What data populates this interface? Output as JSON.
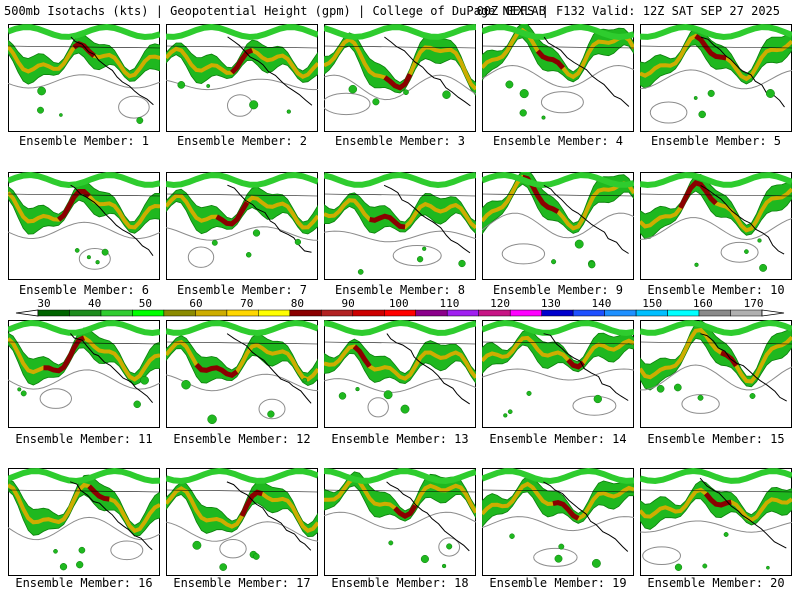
{
  "header": {
    "left": "500mb Isotachs (kts) | Geopotential Height (gpm) | College of DuPage NEXLAB",
    "right": "00Z GEFS | F132 Valid: 12Z SAT SEP 27 2025"
  },
  "legend": {
    "ticks": [
      "30",
      "40",
      "50",
      "60",
      "70",
      "80",
      "90",
      "100",
      "110",
      "120",
      "130",
      "140",
      "150",
      "160",
      "170"
    ],
    "colors": [
      "#006400",
      "#1e8c1e",
      "#32cd32",
      "#00ff00",
      "#8b8b00",
      "#cdad00",
      "#ffd700",
      "#ffff00",
      "#8b0000",
      "#b22222",
      "#cd0000",
      "#ff0000",
      "#8b008b",
      "#a020f0",
      "#c71585",
      "#ff00ff",
      "#0000cd",
      "#1e50ff",
      "#1e90ff",
      "#00bfff",
      "#00ffff",
      "#8a8a8a",
      "#b0b0b0"
    ]
  },
  "members": [
    {
      "label": "Ensemble Member: 1"
    },
    {
      "label": "Ensemble Member: 2"
    },
    {
      "label": "Ensemble Member: 3"
    },
    {
      "label": "Ensemble Member: 4"
    },
    {
      "label": "Ensemble Member: 5"
    },
    {
      "label": "Ensemble Member: 6"
    },
    {
      "label": "Ensemble Member: 7"
    },
    {
      "label": "Ensemble Member: 8"
    },
    {
      "label": "Ensemble Member: 9"
    },
    {
      "label": "Ensemble Member: 10"
    },
    {
      "label": "Ensemble Member: 11"
    },
    {
      "label": "Ensemble Member: 12"
    },
    {
      "label": "Ensemble Member: 13"
    },
    {
      "label": "Ensemble Member: 14"
    },
    {
      "label": "Ensemble Member: 15"
    },
    {
      "label": "Ensemble Member: 16"
    },
    {
      "label": "Ensemble Member: 17"
    },
    {
      "label": "Ensemble Member: 18"
    },
    {
      "label": "Ensemble Member: 19"
    },
    {
      "label": "Ensemble Member: 20"
    }
  ]
}
